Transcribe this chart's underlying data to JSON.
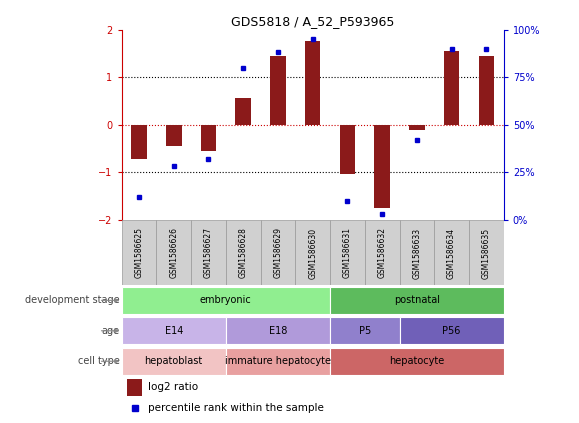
{
  "title": "GDS5818 / A_52_P593965",
  "samples": [
    "GSM1586625",
    "GSM1586626",
    "GSM1586627",
    "GSM1586628",
    "GSM1586629",
    "GSM1586630",
    "GSM1586631",
    "GSM1586632",
    "GSM1586633",
    "GSM1586634",
    "GSM1586635"
  ],
  "log2_ratios": [
    -0.72,
    -0.45,
    -0.55,
    0.55,
    1.45,
    1.75,
    -1.05,
    -1.75,
    -0.12,
    1.55,
    1.45
  ],
  "percentile_ranks": [
    12,
    28,
    32,
    80,
    88,
    95,
    10,
    3,
    42,
    90,
    90
  ],
  "ylim_left": [
    -2,
    2
  ],
  "ylim_right": [
    0,
    100
  ],
  "hline_values": [
    -1,
    0,
    1
  ],
  "bar_color": "#8B1A1A",
  "dot_color": "#0000CD",
  "bar_width": 0.45,
  "development_stage": [
    {
      "start": 0,
      "end": 5,
      "color": "#90EE90",
      "label": "embryonic"
    },
    {
      "start": 6,
      "end": 10,
      "color": "#5DBB5D",
      "label": "postnatal"
    }
  ],
  "age": [
    {
      "start": 0,
      "end": 2,
      "color": "#C8B4E8",
      "label": "E14"
    },
    {
      "start": 3,
      "end": 5,
      "color": "#B09ADA",
      "label": "E18"
    },
    {
      "start": 6,
      "end": 7,
      "color": "#9080CC",
      "label": "P5"
    },
    {
      "start": 8,
      "end": 10,
      "color": "#7060B8",
      "label": "P56"
    }
  ],
  "cell_type": [
    {
      "start": 0,
      "end": 2,
      "color": "#F2C4C4",
      "label": "hepatoblast"
    },
    {
      "start": 3,
      "end": 5,
      "color": "#E8A0A0",
      "label": "immature hepatocyte"
    },
    {
      "start": 6,
      "end": 10,
      "color": "#CC6666",
      "label": "hepatocyte"
    }
  ],
  "row_labels": [
    "development stage",
    "age",
    "cell type"
  ],
  "tick_color_left": "#CC0000",
  "tick_color_right": "#0000CC",
  "background_color": "#ffffff",
  "sample_bg_color": "#D0D0D0",
  "sample_border_color": "#999999"
}
